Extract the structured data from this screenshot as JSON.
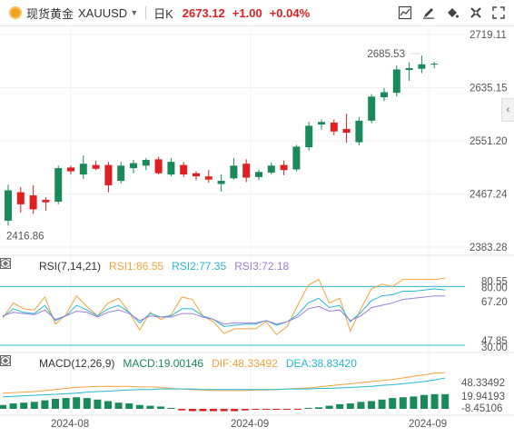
{
  "header": {
    "name": "现货黄金",
    "symbol": "XAUUSD",
    "period": "日K",
    "price": "2673.12",
    "change": "+1.00",
    "change_pct": "+0.04%",
    "up_color": "#e02020",
    "down_color": "#1a8a5a"
  },
  "toolbar_icons": [
    "line-chart-icon",
    "draw-tool-icon",
    "paint-bucket-icon",
    "settings-icon",
    "fullscreen-icon"
  ],
  "chart_data": [
    {
      "type": "candlestick",
      "title": "现货黄金 XAUUSD 日K",
      "y_ticks": [
        "2719.11",
        "2635.15",
        "2551.20",
        "2467.24",
        "2383.28"
      ],
      "ylim": [
        2383.28,
        2719.11
      ],
      "x_ticks": [
        "2024-08",
        "2024-09",
        "2024-09"
      ],
      "annotations": {
        "high": "2685.53",
        "low": "2416.86"
      },
      "candles": [
        {
          "o": 2425,
          "h": 2482,
          "l": 2417,
          "c": 2473
        },
        {
          "o": 2470,
          "h": 2478,
          "l": 2438,
          "c": 2451
        },
        {
          "o": 2465,
          "h": 2481,
          "l": 2436,
          "c": 2443
        },
        {
          "o": 2458,
          "h": 2462,
          "l": 2441,
          "c": 2454
        },
        {
          "o": 2455,
          "h": 2512,
          "l": 2451,
          "c": 2508
        },
        {
          "o": 2509,
          "h": 2512,
          "l": 2498,
          "c": 2503
        },
        {
          "o": 2498,
          "h": 2528,
          "l": 2491,
          "c": 2515
        },
        {
          "o": 2513,
          "h": 2520,
          "l": 2505,
          "c": 2507
        },
        {
          "o": 2513,
          "h": 2518,
          "l": 2470,
          "c": 2481
        },
        {
          "o": 2488,
          "h": 2518,
          "l": 2484,
          "c": 2512
        },
        {
          "o": 2508,
          "h": 2521,
          "l": 2500,
          "c": 2516
        },
        {
          "o": 2512,
          "h": 2524,
          "l": 2505,
          "c": 2521
        },
        {
          "o": 2522,
          "h": 2526,
          "l": 2498,
          "c": 2500
        },
        {
          "o": 2498,
          "h": 2524,
          "l": 2495,
          "c": 2518
        },
        {
          "o": 2513,
          "h": 2518,
          "l": 2494,
          "c": 2498
        },
        {
          "o": 2500,
          "h": 2503,
          "l": 2489,
          "c": 2495
        },
        {
          "o": 2495,
          "h": 2505,
          "l": 2485,
          "c": 2490
        },
        {
          "o": 2483,
          "h": 2498,
          "l": 2471,
          "c": 2488
        },
        {
          "o": 2492,
          "h": 2524,
          "l": 2490,
          "c": 2512
        },
        {
          "o": 2515,
          "h": 2522,
          "l": 2486,
          "c": 2493
        },
        {
          "o": 2494,
          "h": 2506,
          "l": 2489,
          "c": 2502
        },
        {
          "o": 2501,
          "h": 2517,
          "l": 2498,
          "c": 2512
        },
        {
          "o": 2513,
          "h": 2520,
          "l": 2497,
          "c": 2505
        },
        {
          "o": 2506,
          "h": 2545,
          "l": 2503,
          "c": 2542
        },
        {
          "o": 2541,
          "h": 2581,
          "l": 2536,
          "c": 2575
        },
        {
          "o": 2577,
          "h": 2585,
          "l": 2569,
          "c": 2581
        },
        {
          "o": 2580,
          "h": 2585,
          "l": 2560,
          "c": 2566
        },
        {
          "o": 2570,
          "h": 2594,
          "l": 2548,
          "c": 2564
        },
        {
          "o": 2549,
          "h": 2589,
          "l": 2544,
          "c": 2583
        },
        {
          "o": 2583,
          "h": 2625,
          "l": 2579,
          "c": 2621
        },
        {
          "o": 2620,
          "h": 2635,
          "l": 2614,
          "c": 2628
        },
        {
          "o": 2627,
          "h": 2670,
          "l": 2621,
          "c": 2664
        },
        {
          "o": 2663,
          "h": 2675,
          "l": 2646,
          "c": 2666
        },
        {
          "o": 2665,
          "h": 2686,
          "l": 2658,
          "c": 2672
        },
        {
          "o": 2672,
          "h": 2676,
          "l": 2666,
          "c": 2673
        }
      ]
    },
    {
      "type": "line",
      "title": "RSI(7,14,21)",
      "y_ticks": [
        "80.55",
        "80.00",
        "67.20",
        "47.85",
        "30.00"
      ],
      "series": [
        {
          "name": "RSI1:86.55",
          "color": "#f5a23c"
        },
        {
          "name": "RSI2:77.35",
          "color": "#29b6d3"
        },
        {
          "name": "RSI3:72.18",
          "color": "#9a7fd6"
        }
      ],
      "rsi1": [
        53,
        66,
        61,
        60,
        71,
        48,
        56,
        72,
        63,
        55,
        66,
        70,
        58,
        43,
        58,
        52,
        56,
        71,
        69,
        55,
        50,
        40,
        44,
        44,
        44,
        50,
        39,
        46,
        64,
        81,
        86,
        66,
        70,
        42,
        61,
        78,
        82,
        80,
        86,
        86,
        86,
        86,
        87
      ],
      "rsi2": [
        54,
        61,
        58,
        57,
        64,
        51,
        55,
        64,
        60,
        55,
        61,
        64,
        58,
        49,
        57,
        54,
        55,
        61,
        61,
        55,
        52,
        46,
        47,
        48,
        48,
        51,
        47,
        50,
        56,
        66,
        70,
        62,
        64,
        50,
        58,
        68,
        72,
        73,
        76,
        76,
        77,
        78,
        77
      ],
      "rsi3": [
        55,
        58,
        57,
        56,
        60,
        52,
        55,
        59,
        58,
        54,
        58,
        60,
        57,
        51,
        55,
        54,
        54,
        57,
        57,
        54,
        52,
        48,
        49,
        49,
        49,
        51,
        48,
        50,
        54,
        61,
        63,
        59,
        60,
        51,
        55,
        62,
        64,
        66,
        69,
        70,
        71,
        72,
        72
      ]
    },
    {
      "type": "bar",
      "title": "MACD(12,26,9)",
      "y_ticks": [
        "48.33492",
        "19.94193",
        "-8.45106"
      ],
      "series": [
        {
          "name": "MACD:19.00146",
          "color": "#1a8a5a"
        },
        {
          "name": "DIF:48.33492",
          "color": "#f5a23c"
        },
        {
          "name": "DEA:38.83420",
          "color": "#29b6d3"
        }
      ],
      "macd": [
        5,
        7,
        8,
        9,
        11,
        13,
        14,
        15,
        14,
        12,
        10,
        8,
        7,
        5,
        4,
        3,
        0,
        -2,
        -3,
        -3,
        -3,
        -3,
        -3,
        -2,
        -1,
        -1,
        -1,
        -0.5,
        -0.2,
        0.5,
        2,
        4,
        6,
        7,
        9,
        10,
        12,
        14,
        15,
        16,
        18,
        19,
        19
      ],
      "dif": [
        9,
        10,
        11,
        12,
        14,
        16,
        18,
        20,
        21,
        22,
        22,
        22,
        22,
        21,
        21,
        20,
        18,
        17,
        16,
        15,
        14,
        14,
        14,
        14,
        15,
        15,
        16,
        17,
        18,
        19,
        21,
        23,
        25,
        27,
        29,
        31,
        33,
        35,
        38,
        41,
        44,
        47,
        48
      ],
      "dea": [
        2,
        3,
        4,
        5,
        6,
        7,
        8,
        9,
        11,
        12,
        13,
        14,
        15,
        16,
        16,
        17,
        17,
        17,
        17,
        16,
        16,
        16,
        16,
        16,
        16,
        16,
        16,
        17,
        17,
        17,
        18,
        18,
        19,
        20,
        21,
        22,
        24,
        25,
        27,
        29,
        31,
        34,
        38
      ]
    }
  ]
}
